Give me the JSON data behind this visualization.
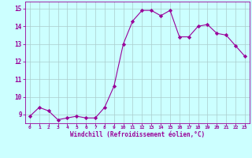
{
  "x": [
    0,
    1,
    2,
    3,
    4,
    5,
    6,
    7,
    8,
    9,
    10,
    11,
    12,
    13,
    14,
    15,
    16,
    17,
    18,
    19,
    20,
    21,
    22,
    23
  ],
  "y": [
    8.9,
    9.4,
    9.2,
    8.7,
    8.8,
    8.9,
    8.8,
    8.8,
    9.4,
    10.6,
    13.0,
    14.3,
    14.9,
    14.9,
    14.6,
    14.9,
    13.4,
    13.4,
    14.0,
    14.1,
    13.6,
    13.5,
    12.9,
    12.3
  ],
  "line_color": "#990099",
  "marker": "D",
  "marker_size": 2.2,
  "bg_color": "#ccffff",
  "grid_color": "#aacccc",
  "xlabel": "Windchill (Refroidissement éolien,°C)",
  "xlabel_color": "#990099",
  "tick_color": "#990099",
  "ylim": [
    8.5,
    15.4
  ],
  "yticks": [
    9,
    10,
    11,
    12,
    13,
    14,
    15
  ],
  "xtick_labels": [
    "0",
    "1",
    "2",
    "3",
    "4",
    "5",
    "6",
    "7",
    "8",
    "9",
    "10",
    "11",
    "12",
    "13",
    "14",
    "15",
    "16",
    "17",
    "18",
    "19",
    "20",
    "21",
    "22",
    "23"
  ]
}
